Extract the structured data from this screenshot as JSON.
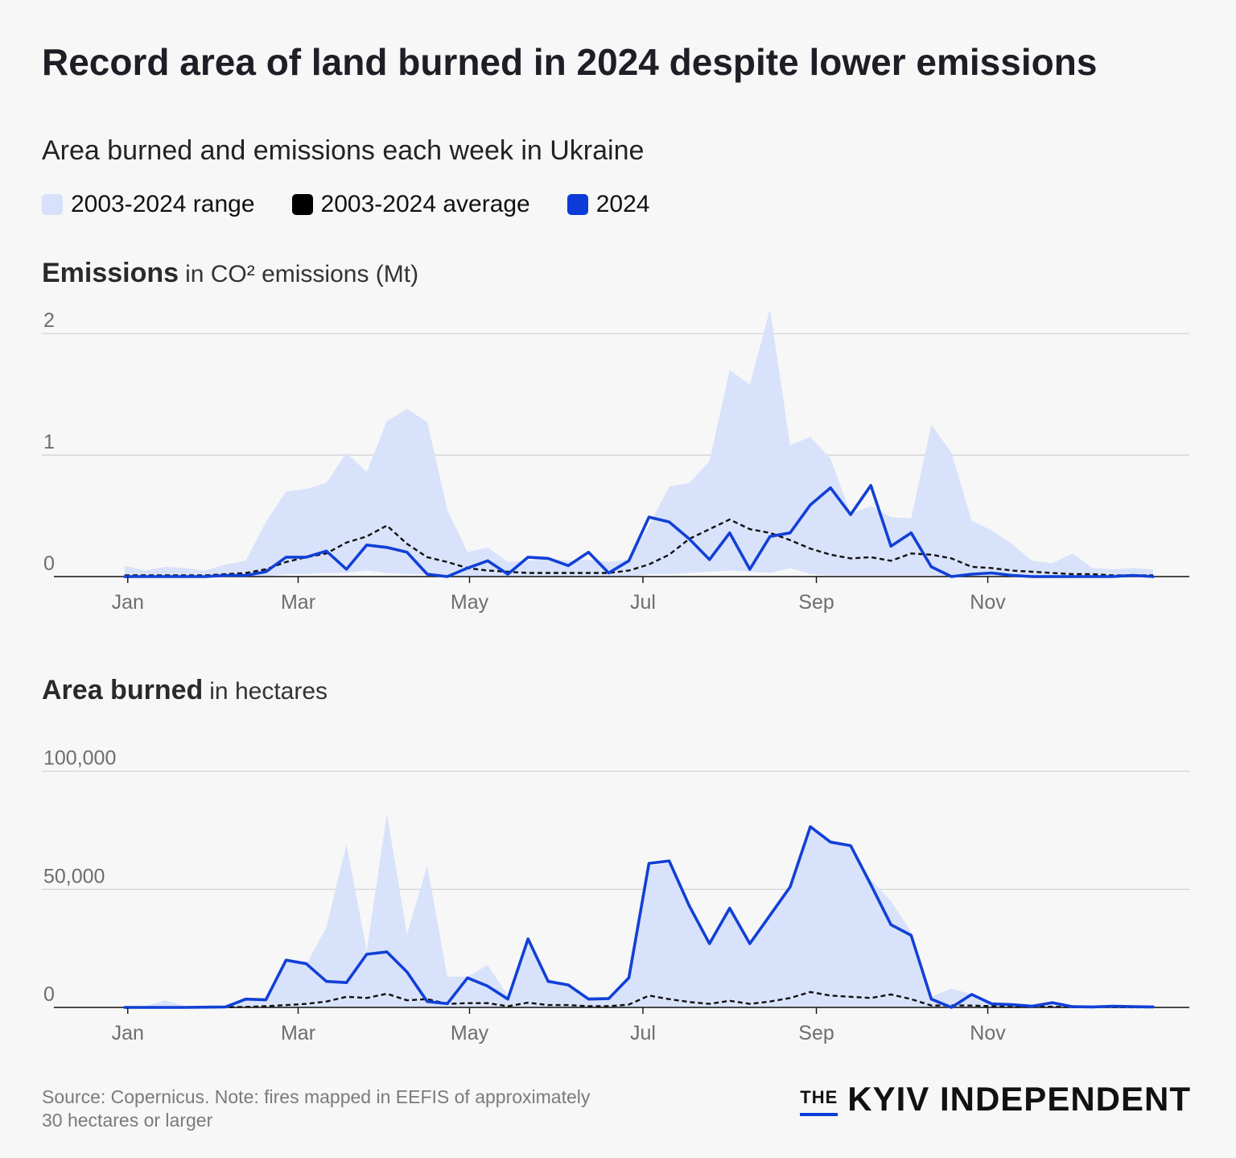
{
  "title": "Record area of land burned in 2024 despite lower emissions",
  "subtitle": "Area burned and emissions each week in Ukraine",
  "legend": [
    {
      "label": "2003-2024 range",
      "color": "#d7e1fb"
    },
    {
      "label": "2003-2024 average",
      "color": "#000000"
    },
    {
      "label": "2024",
      "color": "#0b3cd8"
    }
  ],
  "colors": {
    "range": "#d9e2fb",
    "average": "#111111",
    "current": "#1140d6",
    "grid": "#cfcfd2",
    "axis": "#111111"
  },
  "emissions_header": {
    "bold": "Emissions",
    "unit": "in CO² emissions (Mt)"
  },
  "area_header": {
    "bold": "Area burned",
    "unit": "in hectares"
  },
  "footer": {
    "source": "Source: Copernicus. Note: fires mapped in EEFIS of approximately 30 hectares or larger"
  },
  "brand": {
    "the": "THE",
    "name": "KYIV INDEPENDENT"
  },
  "chart_data": [
    {
      "type": "area",
      "title": "Emissions",
      "ylabel": "in CO² emissions (Mt)",
      "x_unit": "week",
      "ylim": [
        0,
        2.2
      ],
      "yticks": [
        0,
        1,
        2
      ],
      "ytick_labels": [
        "0",
        "1",
        "2"
      ],
      "xticks": [
        {
          "label": "Jan",
          "week": 0.15
        },
        {
          "label": "Mar",
          "week": 8.6
        },
        {
          "label": "May",
          "week": 17.1
        },
        {
          "label": "Jul",
          "week": 25.7
        },
        {
          "label": "Sep",
          "week": 34.3
        },
        {
          "label": "Nov",
          "week": 42.8
        }
      ],
      "weeks": [
        1,
        2,
        3,
        4,
        5,
        6,
        7,
        8,
        9,
        10,
        11,
        12,
        13,
        14,
        15,
        16,
        17,
        18,
        19,
        20,
        21,
        22,
        23,
        24,
        25,
        26,
        27,
        28,
        29,
        30,
        31,
        32,
        33,
        34,
        35,
        36,
        37,
        38,
        39,
        40,
        41,
        42,
        43,
        44,
        45,
        46,
        47,
        48,
        49,
        50,
        51,
        52
      ],
      "series": [
        {
          "name": "2003-2024 range (max)",
          "values": [
            0.09,
            0.05,
            0.08,
            0.07,
            0.05,
            0.1,
            0.13,
            0.45,
            0.7,
            0.72,
            0.77,
            1.02,
            0.86,
            1.28,
            1.38,
            1.27,
            0.55,
            0.2,
            0.24,
            0.12,
            0.13,
            0.15,
            0.13,
            0.14,
            0.12,
            0.14,
            0.42,
            0.74,
            0.77,
            0.95,
            1.7,
            1.58,
            2.2,
            1.08,
            1.15,
            0.97,
            0.52,
            0.58,
            0.49,
            0.48,
            1.25,
            1.02,
            0.46,
            0.38,
            0.27,
            0.13,
            0.11,
            0.19,
            0.07,
            0.06,
            0.07,
            0.06
          ]
        },
        {
          "name": "2003-2024 range (min)",
          "values": [
            0,
            0,
            0,
            0,
            0,
            0,
            0,
            0,
            0.02,
            0.02,
            0.03,
            0.03,
            0.05,
            0.03,
            0.02,
            0.02,
            0.01,
            0,
            0,
            0,
            0,
            0,
            0,
            0,
            0,
            0,
            0.02,
            0.02,
            0.03,
            0.04,
            0.05,
            0.04,
            0.03,
            0.07,
            0.02,
            0.01,
            0.01,
            0.01,
            0.01,
            0.01,
            0.01,
            0,
            0,
            0,
            0,
            0,
            0,
            0,
            0,
            0,
            0,
            0
          ]
        },
        {
          "name": "2003-2024 average",
          "values": [
            0.01,
            0.01,
            0.01,
            0.01,
            0.01,
            0.02,
            0.03,
            0.06,
            0.12,
            0.16,
            0.19,
            0.28,
            0.33,
            0.42,
            0.27,
            0.16,
            0.12,
            0.07,
            0.05,
            0.04,
            0.03,
            0.03,
            0.03,
            0.03,
            0.03,
            0.05,
            0.1,
            0.18,
            0.31,
            0.39,
            0.47,
            0.39,
            0.36,
            0.3,
            0.23,
            0.18,
            0.15,
            0.16,
            0.13,
            0.19,
            0.18,
            0.15,
            0.08,
            0.07,
            0.05,
            0.04,
            0.03,
            0.02,
            0.02,
            0.01,
            0.01,
            0.01
          ]
        },
        {
          "name": "2024",
          "values": [
            0,
            0,
            0,
            0,
            0,
            0.01,
            0.01,
            0.04,
            0.16,
            0.16,
            0.21,
            0.06,
            0.26,
            0.24,
            0.2,
            0.02,
            0,
            0.07,
            0.13,
            0.02,
            0.16,
            0.15,
            0.09,
            0.2,
            0.03,
            0.13,
            0.49,
            0.45,
            0.31,
            0.14,
            0.36,
            0.06,
            0.33,
            0.36,
            0.59,
            0.73,
            0.51,
            0.75,
            0.25,
            0.36,
            0.08,
            0,
            0.02,
            0.03,
            0.01,
            0,
            0,
            0,
            0,
            0,
            0.01,
            0
          ]
        }
      ]
    },
    {
      "type": "area",
      "title": "Area burned",
      "ylabel": "in hectares",
      "x_unit": "week",
      "ylim": [
        0,
        105000
      ],
      "yticks": [
        0,
        50000,
        100000
      ],
      "ytick_labels": [
        "0",
        "50,000",
        "100,000"
      ],
      "xticks": [
        {
          "label": "Jan",
          "week": 0.15
        },
        {
          "label": "Mar",
          "week": 8.6
        },
        {
          "label": "May",
          "week": 17.1
        },
        {
          "label": "Jul",
          "week": 25.7
        },
        {
          "label": "Sep",
          "week": 34.3
        },
        {
          "label": "Nov",
          "week": 42.8
        }
      ],
      "weeks": [
        1,
        2,
        3,
        4,
        5,
        6,
        7,
        8,
        9,
        10,
        11,
        12,
        13,
        14,
        15,
        16,
        17,
        18,
        19,
        20,
        21,
        22,
        23,
        24,
        25,
        26,
        27,
        28,
        29,
        30,
        31,
        32,
        33,
        34,
        35,
        36,
        37,
        38,
        39,
        40,
        41,
        42,
        43,
        44,
        45,
        46,
        47,
        48,
        49,
        50,
        51,
        52
      ],
      "series": [
        {
          "name": "2003-2024 range (max)",
          "values": [
            200,
            500,
            3000,
            500,
            500,
            500,
            3000,
            3500,
            19500,
            18000,
            34000,
            69000,
            24000,
            82000,
            31000,
            60000,
            13000,
            13000,
            18000,
            5000,
            28000,
            12000,
            10000,
            4500,
            4500,
            13000,
            60000,
            61000,
            42000,
            27000,
            42000,
            27000,
            39000,
            51000,
            76000,
            70000,
            68000,
            54000,
            45000,
            32000,
            4500,
            8000,
            5500,
            2000,
            1500,
            800,
            2000,
            500,
            500,
            500,
            300,
            200
          ]
        },
        {
          "name": "2003-2024 range (min)",
          "values": [
            0,
            0,
            0,
            0,
            0,
            0,
            0,
            0,
            0,
            0,
            0,
            0,
            0,
            0,
            0,
            0,
            0,
            0,
            0,
            0,
            0,
            0,
            0,
            0,
            0,
            0,
            0,
            0,
            0,
            0,
            0,
            0,
            0,
            0,
            0,
            0,
            0,
            0,
            0,
            0,
            0,
            0,
            0,
            0,
            0,
            0,
            0,
            0,
            0,
            0,
            0,
            0
          ]
        },
        {
          "name": "2003-2024 average",
          "values": [
            0,
            0,
            0,
            0,
            0,
            100,
            200,
            500,
            1000,
            1500,
            2500,
            4500,
            4000,
            5800,
            3000,
            3500,
            1500,
            1800,
            1800,
            500,
            2000,
            1000,
            1000,
            500,
            500,
            1200,
            5000,
            3500,
            2300,
            1500,
            2800,
            1500,
            2500,
            4000,
            6500,
            5000,
            4500,
            4000,
            5500,
            3500,
            800,
            900,
            800,
            500,
            200,
            200,
            300,
            100,
            100,
            100,
            50,
            50
          ]
        },
        {
          "name": "2024",
          "values": [
            0,
            0,
            0,
            0,
            100,
            200,
            3500,
            3200,
            20000,
            18500,
            11000,
            10500,
            22500,
            23500,
            15000,
            2500,
            1600,
            12500,
            9000,
            3500,
            29000,
            11000,
            9500,
            3500,
            3700,
            12500,
            61000,
            62000,
            43000,
            27000,
            42000,
            27000,
            39000,
            51000,
            76500,
            70000,
            68500,
            52000,
            35000,
            30500,
            3500,
            0,
            5500,
            1500,
            1200,
            500,
            2000,
            300,
            200,
            500,
            300,
            200
          ]
        }
      ]
    }
  ]
}
